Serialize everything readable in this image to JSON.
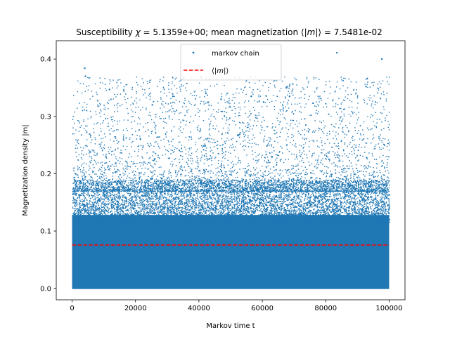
{
  "chart_data": {
    "type": "scatter",
    "title": "Susceptibility χ = 5.1359e+00; mean magnetization ⟨|m|⟩ = 7.5481e-02",
    "title_parts": {
      "prefix": "Susceptibility ",
      "chi": "χ",
      "mid": " = 5.1359e+00; mean magnetization ⟨|",
      "m": "m",
      "suffix": "|⟩ = 7.5481e-02"
    },
    "xlabel": "Markov time t",
    "ylabel": "Magnetization density |m|",
    "xlim": [
      -5000,
      105000
    ],
    "ylim": [
      -0.02,
      0.432
    ],
    "xticks": [
      0,
      20000,
      40000,
      60000,
      80000,
      100000
    ],
    "xtick_labels": [
      "0",
      "20000",
      "40000",
      "60000",
      "80000",
      "100000"
    ],
    "yticks": [
      0.0,
      0.1,
      0.2,
      0.3,
      0.4
    ],
    "ytick_labels": [
      "0.0",
      "0.1",
      "0.2",
      "0.3",
      "0.4"
    ],
    "grid": false,
    "legend_position": "top-center",
    "series": [
      {
        "name": "markov chain",
        "kind": "scatter",
        "color": "#1f77b4",
        "x_range": [
          0,
          100000
        ],
        "n_points": 100000,
        "core_max": 0.16,
        "mean": 0.0755,
        "highlight_points": [
          {
            "x": 4000,
            "y": 0.384
          },
          {
            "x": 4200,
            "y": 0.37
          },
          {
            "x": 11800,
            "y": 0.347
          },
          {
            "x": 83500,
            "y": 0.411
          },
          {
            "x": 97700,
            "y": 0.4
          },
          {
            "x": 93100,
            "y": 0.366
          },
          {
            "x": 92700,
            "y": 0.352
          },
          {
            "x": 42200,
            "y": 0.34
          },
          {
            "x": 31800,
            "y": 0.335
          },
          {
            "x": 56500,
            "y": 0.335
          },
          {
            "x": 47000,
            "y": 0.33
          },
          {
            "x": 25300,
            "y": 0.32
          },
          {
            "x": 60400,
            "y": 0.325
          },
          {
            "x": 68600,
            "y": 0.335
          },
          {
            "x": 76000,
            "y": 0.323
          }
        ]
      },
      {
        "name": "⟨|m|⟩",
        "name_parts": {
          "prefix": "⟨|",
          "m": "m",
          "suffix": "|⟩"
        },
        "kind": "hline",
        "color": "#ff0000",
        "dashed": true,
        "y": 0.075481,
        "x_range": [
          0,
          100000
        ]
      }
    ]
  }
}
